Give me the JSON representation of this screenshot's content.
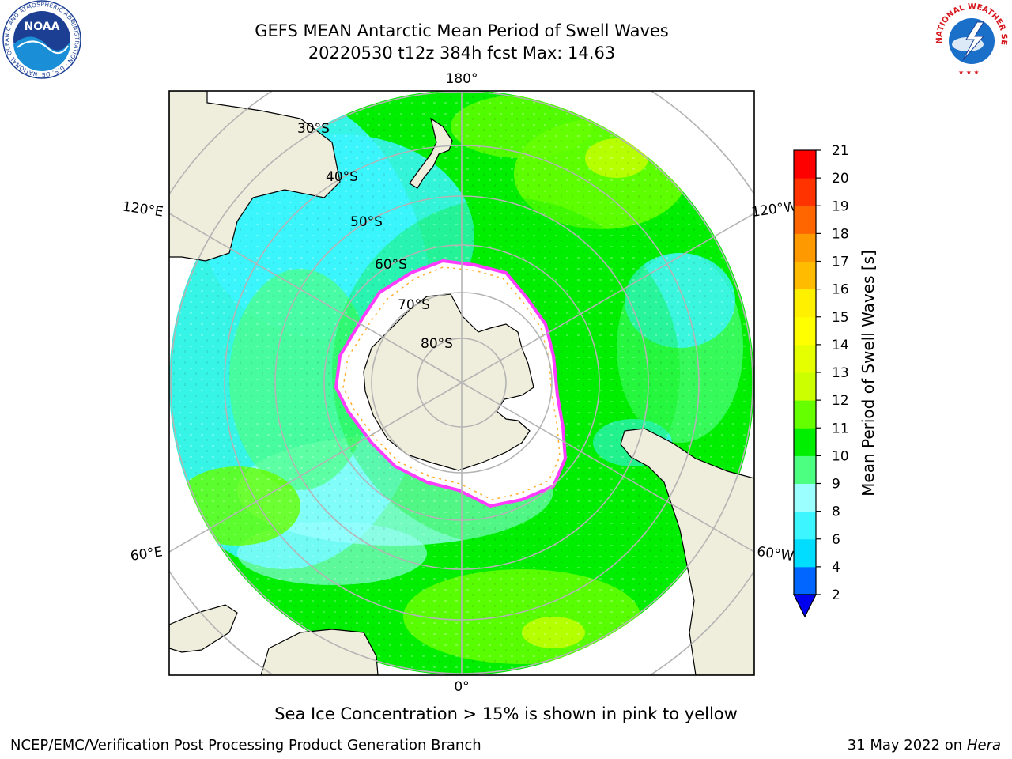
{
  "header": {
    "title_line1": "GEFS MEAN Antarctic Mean Period of Swell Waves",
    "title_line2": "20220530 t12z 384h fcst   Max: 14.63"
  },
  "logos": {
    "noaa_text": "NOAA",
    "noaa_ring": "NATIONAL OCEANIC AND ATMOSPHERIC ADMINISTRATION · U.S. DEPARTMENT OF COMMERCE",
    "nws_ring": "NATIONAL WEATHER SERVICE"
  },
  "map": {
    "lon_labels": {
      "top": "180°",
      "bottom": "0°",
      "left_upper": "120°E",
      "left_lower": "60°E",
      "right_upper": "120°W",
      "right_lower": "60°W"
    },
    "lat_labels": [
      "30°S",
      "40°S",
      "50°S",
      "60°S",
      "70°S",
      "80°S"
    ],
    "colors": {
      "land": "#efeddb",
      "ice": "#ffffff",
      "grid": "#b4b4b4",
      "ice_edge": "#ff3cff",
      "ice_inner": "#ffb02e"
    }
  },
  "colorbar": {
    "label": "Mean Period of Swell Waves [s]",
    "ticks": [
      "2",
      "4",
      "6",
      "8",
      "9",
      "10",
      "11",
      "12",
      "13",
      "14",
      "15",
      "16",
      "17",
      "18",
      "19",
      "20",
      "21"
    ],
    "colors": [
      "#0066ff",
      "#00ddff",
      "#3cf5ff",
      "#9bffff",
      "#4dff80",
      "#00ee00",
      "#66ff00",
      "#ccff00",
      "#e6ff00",
      "#ffff00",
      "#fff000",
      "#ffbb00",
      "#ff9900",
      "#ff6600",
      "#ff3300",
      "#ff0000"
    ],
    "under_color": "#0000ee"
  },
  "notes": {
    "sea_ice": "Sea Ice Concentration > 15% is shown in pink to yellow"
  },
  "footer": {
    "left": "NCEP/EMC/Verification Post Processing Product Generation Branch",
    "right_prefix": "31 May 2022 on",
    "right_host": "Hera"
  }
}
